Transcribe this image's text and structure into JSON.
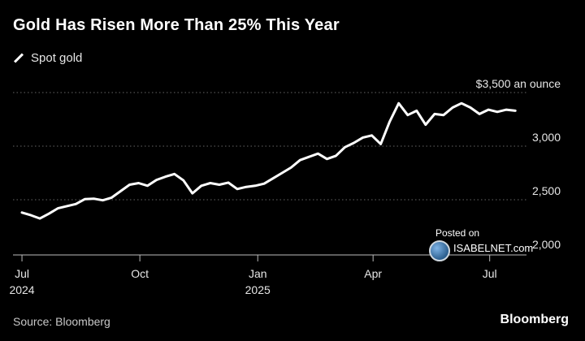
{
  "title": "Gold Has Risen More Than 25% This Year",
  "legend": {
    "label": "Spot gold"
  },
  "source": "Source: Bloomberg",
  "brand": "Bloomberg",
  "watermark": {
    "posted": "Posted on",
    "site": "ISABELNET.com"
  },
  "colors": {
    "background": "#000000",
    "line": "#ffffff",
    "grid": "#666666",
    "axis": "#bbbbbb",
    "text": "#ffffff"
  },
  "chart_data": {
    "type": "line",
    "title": "Gold Has Risen More Than 25% This Year",
    "series": [
      {
        "name": "Spot gold",
        "x": [
          "2024-07-01",
          "2024-07-08",
          "2024-07-15",
          "2024-07-22",
          "2024-07-29",
          "2024-08-05",
          "2024-08-12",
          "2024-08-19",
          "2024-08-26",
          "2024-09-02",
          "2024-09-09",
          "2024-09-16",
          "2024-09-23",
          "2024-09-30",
          "2024-10-07",
          "2024-10-14",
          "2024-10-21",
          "2024-10-28",
          "2024-11-04",
          "2024-11-11",
          "2024-11-18",
          "2024-11-25",
          "2024-12-02",
          "2024-12-09",
          "2024-12-16",
          "2024-12-23",
          "2024-12-30",
          "2025-01-06",
          "2025-01-13",
          "2025-01-20",
          "2025-01-27",
          "2025-02-03",
          "2025-02-10",
          "2025-02-17",
          "2025-02-24",
          "2025-03-03",
          "2025-03-10",
          "2025-03-17",
          "2025-03-24",
          "2025-03-31",
          "2025-04-07",
          "2025-04-14",
          "2025-04-21",
          "2025-04-28",
          "2025-05-05",
          "2025-05-12",
          "2025-05-19",
          "2025-05-26",
          "2025-06-02",
          "2025-06-09",
          "2025-06-16",
          "2025-06-23",
          "2025-06-30",
          "2025-07-07",
          "2025-07-14",
          "2025-07-21"
        ],
        "values": [
          2380,
          2355,
          2325,
          2370,
          2420,
          2440,
          2460,
          2505,
          2510,
          2495,
          2520,
          2580,
          2640,
          2655,
          2630,
          2685,
          2715,
          2740,
          2680,
          2560,
          2630,
          2655,
          2640,
          2660,
          2600,
          2620,
          2630,
          2650,
          2700,
          2750,
          2800,
          2870,
          2900,
          2930,
          2880,
          2910,
          2990,
          3030,
          3080,
          3100,
          3020,
          3230,
          3400,
          3290,
          3330,
          3200,
          3300,
          3290,
          3360,
          3400,
          3360,
          3300,
          3340,
          3320,
          3340,
          3330
        ]
      }
    ],
    "xticks": [
      {
        "date": "2024-07-01",
        "label": "Jul",
        "sublabel": "2024"
      },
      {
        "date": "2024-10-01",
        "label": "Oct",
        "sublabel": ""
      },
      {
        "date": "2025-01-01",
        "label": "Jan",
        "sublabel": "2025"
      },
      {
        "date": "2025-04-01",
        "label": "Apr",
        "sublabel": ""
      },
      {
        "date": "2025-07-01",
        "label": "Jul",
        "sublabel": ""
      }
    ],
    "yticks": [
      {
        "value": 2000,
        "label": "2,000"
      },
      {
        "value": 2500,
        "label": "2,500"
      },
      {
        "value": 3000,
        "label": "3,000"
      },
      {
        "value": 3500,
        "label": "$3,500 an ounce"
      }
    ],
    "xlim": [
      "2024-06-24",
      "2025-07-31"
    ],
    "ylim": [
      2000,
      3500
    ],
    "grid": true,
    "grid_style": "dotted horizontal"
  }
}
